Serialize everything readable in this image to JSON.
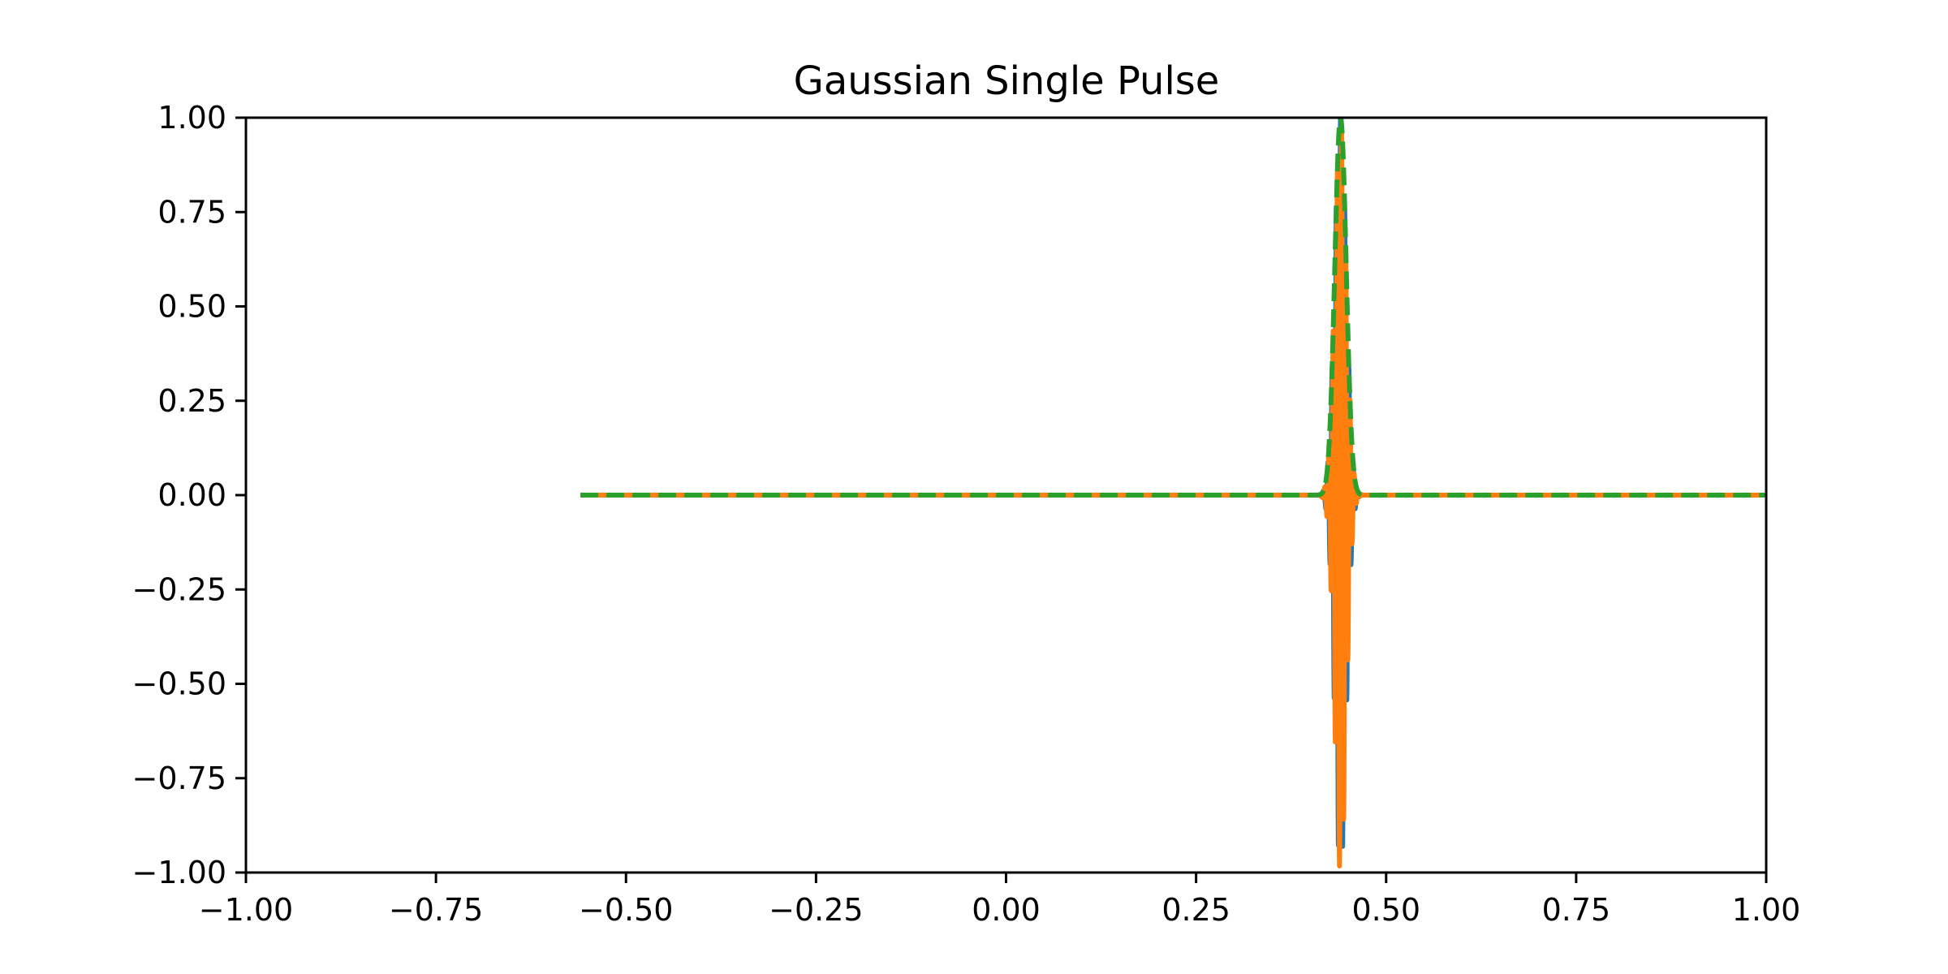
{
  "chart_data": {
    "type": "line",
    "title": "Gaussian Single Pulse",
    "xlabel": "",
    "ylabel": "",
    "xlim": [
      -1.0,
      1.0
    ],
    "ylim": [
      -1.0,
      1.0
    ],
    "grid": false,
    "x_ticks": [
      "−1.00",
      "−0.75",
      "−0.50",
      "−0.25",
      "0.00",
      "0.25",
      "0.50",
      "0.75",
      "1.00"
    ],
    "y_ticks": [
      "1.00",
      "0.75",
      "0.50",
      "0.25",
      "0.00",
      "−0.25",
      "−0.50",
      "−0.75",
      "−1.00"
    ],
    "x_tick_values": [
      -1.0,
      -0.75,
      -0.5,
      -0.25,
      0.0,
      0.25,
      0.5,
      0.75,
      1.0
    ],
    "y_tick_values": [
      1.0,
      0.75,
      0.5,
      0.25,
      0.0,
      -0.25,
      -0.5,
      -0.75,
      -1.0
    ],
    "pulse": {
      "x_start": -0.56,
      "x_end": 1.0,
      "center": 0.44,
      "sigma": 0.0075,
      "carrier_freq": 180
    },
    "series": [
      {
        "kind": "real",
        "color": "#1f77b4",
        "style": "solid"
      },
      {
        "kind": "imag",
        "color": "#ff7f0e",
        "style": "solid"
      },
      {
        "kind": "envelope",
        "color": "#2ca02c",
        "style": "dashed"
      }
    ]
  }
}
